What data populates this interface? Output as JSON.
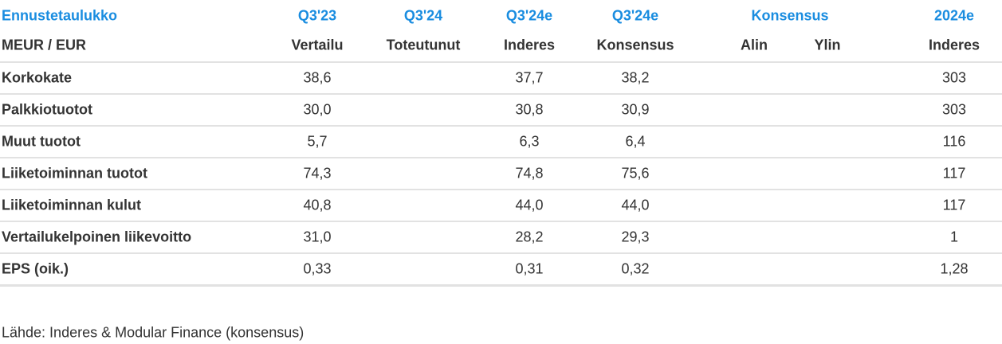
{
  "table": {
    "header_top": {
      "title": "Ennustetaulukko",
      "q3_23": "Q3'23",
      "q3_24": "Q3'24",
      "q3_24e_a": "Q3'24e",
      "q3_24e_b": "Q3'24e",
      "konsensus": "Konsensus",
      "y2024e": "2024e"
    },
    "header_sub": {
      "unit": "MEUR / EUR",
      "vertailu": "Vertailu",
      "toteutunut": "Toteutunut",
      "inderes": "Inderes",
      "konsensus": "Konsensus",
      "alin": "Alin",
      "ylin": "Ylin",
      "inderes_2024": "Inderes"
    },
    "rows": [
      {
        "label": "Korkokate",
        "vertailu": "38,6",
        "inderes": "37,7",
        "konsensus": "38,2",
        "inderes_2024": "303"
      },
      {
        "label": "Palkkiotuotot",
        "vertailu": "30,0",
        "inderes": "30,8",
        "konsensus": "30,9",
        "inderes_2024": "303"
      },
      {
        "label": "Muut tuotot",
        "vertailu": "5,7",
        "inderes": "6,3",
        "konsensus": "6,4",
        "inderes_2024": "116"
      },
      {
        "label": "Liiketoiminnan tuotot",
        "vertailu": "74,3",
        "inderes": "74,8",
        "konsensus": "75,6",
        "inderes_2024": "117"
      },
      {
        "label": "Liiketoiminnan kulut",
        "vertailu": "40,8",
        "inderes": "44,0",
        "konsensus": "44,0",
        "inderes_2024": "117"
      },
      {
        "label": "Vertailukelpoinen liikevoitto",
        "vertailu": "31,0",
        "inderes": "28,2",
        "konsensus": "29,3",
        "inderes_2024": "1"
      },
      {
        "label": "EPS (oik.)",
        "vertailu": "0,33",
        "inderes": "0,31",
        "konsensus": "0,32",
        "inderes_2024": "1,28"
      }
    ],
    "source": "Lähde: Inderes & Modular Finance  (konsensus)"
  }
}
